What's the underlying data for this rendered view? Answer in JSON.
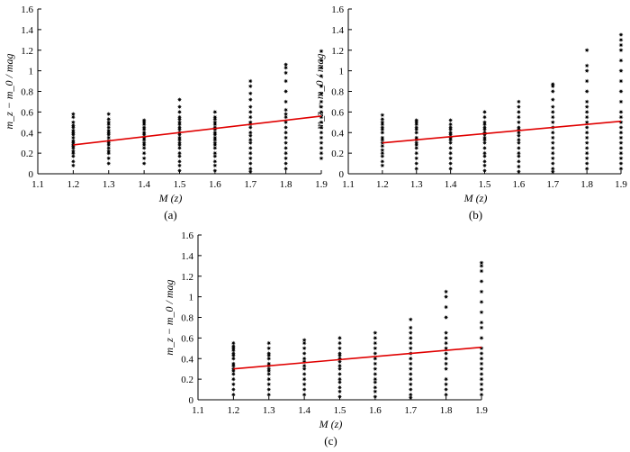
{
  "chart_data": [
    {
      "type": "scatter",
      "label": "(a)",
      "xlabel": "M (z)",
      "ylabel": "m_z − m_0 / mag",
      "xlim": [
        1.1,
        1.9
      ],
      "ylim": [
        0,
        1.6
      ],
      "xticks": [
        "1.1",
        "1.2",
        "1.3",
        "1.4",
        "1.5",
        "1.6",
        "1.7",
        "1.8",
        "1.9"
      ],
      "yticks": [
        "0",
        "0.2",
        "0.4",
        "0.6",
        "0.8",
        "1",
        "1.2",
        "1.4",
        "1.6"
      ],
      "fit_line": {
        "x": [
          1.2,
          1.9
        ],
        "y": [
          0.28,
          0.56
        ]
      },
      "groups": [
        {
          "x": 1.2,
          "y": [
            0.08,
            0.12,
            0.17,
            0.2,
            0.22,
            0.25,
            0.27,
            0.28,
            0.3,
            0.32,
            0.35,
            0.38,
            0.4,
            0.42,
            0.45,
            0.47,
            0.5,
            0.55,
            0.58
          ]
        },
        {
          "x": 1.3,
          "y": [
            0.1,
            0.15,
            0.2,
            0.22,
            0.25,
            0.28,
            0.3,
            0.32,
            0.35,
            0.38,
            0.4,
            0.42,
            0.45,
            0.48,
            0.5,
            0.53,
            0.58
          ]
        },
        {
          "x": 1.4,
          "y": [
            0.1,
            0.15,
            0.2,
            0.25,
            0.28,
            0.3,
            0.33,
            0.35,
            0.38,
            0.4,
            0.43,
            0.45,
            0.48,
            0.5,
            0.52
          ]
        },
        {
          "x": 1.5,
          "y": [
            0.03,
            0.08,
            0.12,
            0.17,
            0.2,
            0.25,
            0.28,
            0.3,
            0.33,
            0.35,
            0.38,
            0.4,
            0.43,
            0.45,
            0.48,
            0.5,
            0.53,
            0.55,
            0.6,
            0.65,
            0.72
          ]
        },
        {
          "x": 1.6,
          "y": [
            0.03,
            0.08,
            0.12,
            0.17,
            0.2,
            0.25,
            0.28,
            0.3,
            0.33,
            0.35,
            0.38,
            0.4,
            0.43,
            0.45,
            0.48,
            0.5,
            0.53,
            0.55,
            0.6
          ]
        },
        {
          "x": 1.7,
          "y": [
            0.02,
            0.05,
            0.1,
            0.15,
            0.2,
            0.25,
            0.3,
            0.33,
            0.37,
            0.4,
            0.45,
            0.48,
            0.5,
            0.55,
            0.6,
            0.65,
            0.72,
            0.78,
            0.85,
            0.9
          ]
        },
        {
          "x": 1.8,
          "y": [
            0.05,
            0.1,
            0.15,
            0.2,
            0.25,
            0.3,
            0.35,
            0.4,
            0.45,
            0.5,
            0.55,
            0.58,
            0.62,
            0.7,
            0.8,
            0.9,
            0.98,
            1.03,
            1.06
          ]
        },
        {
          "x": 1.9,
          "y": [
            0.15,
            0.2,
            0.25,
            0.3,
            0.35,
            0.4,
            0.45,
            0.5,
            0.55,
            0.6,
            0.65,
            0.7,
            0.78,
            0.85,
            0.95,
            1.03,
            1.1,
            1.19
          ]
        }
      ]
    },
    {
      "type": "scatter",
      "label": "(b)",
      "xlabel": "M (z)",
      "ylabel": "m_z − m_0 / mag",
      "xlim": [
        1.1,
        1.9
      ],
      "ylim": [
        0,
        1.6
      ],
      "xticks": [
        "1.1",
        "1.2",
        "1.3",
        "1.4",
        "1.5",
        "1.6",
        "1.7",
        "1.8",
        "1.9"
      ],
      "yticks": [
        "0",
        "0.2",
        "0.4",
        "0.6",
        "0.8",
        "1",
        "1.2",
        "1.4",
        "1.6"
      ],
      "fit_line": {
        "x": [
          1.2,
          1.9
        ],
        "y": [
          0.3,
          0.51
        ]
      },
      "groups": [
        {
          "x": 1.2,
          "y": [
            0.08,
            0.12,
            0.17,
            0.2,
            0.23,
            0.27,
            0.3,
            0.33,
            0.35,
            0.4,
            0.43,
            0.45,
            0.48,
            0.5,
            0.53,
            0.57
          ]
        },
        {
          "x": 1.3,
          "y": [
            0.05,
            0.1,
            0.15,
            0.2,
            0.25,
            0.28,
            0.3,
            0.33,
            0.35,
            0.4,
            0.43,
            0.45,
            0.48,
            0.5,
            0.52
          ]
        },
        {
          "x": 1.4,
          "y": [
            0.05,
            0.1,
            0.15,
            0.2,
            0.25,
            0.3,
            0.33,
            0.35,
            0.38,
            0.4,
            0.43,
            0.45,
            0.48,
            0.52
          ]
        },
        {
          "x": 1.5,
          "y": [
            0.03,
            0.08,
            0.12,
            0.17,
            0.2,
            0.25,
            0.3,
            0.33,
            0.35,
            0.38,
            0.4,
            0.43,
            0.45,
            0.48,
            0.5,
            0.55,
            0.6
          ]
        },
        {
          "x": 1.6,
          "y": [
            0.02,
            0.07,
            0.12,
            0.17,
            0.2,
            0.25,
            0.3,
            0.33,
            0.37,
            0.4,
            0.43,
            0.45,
            0.5,
            0.55,
            0.6,
            0.65,
            0.7
          ]
        },
        {
          "x": 1.7,
          "y": [
            0.02,
            0.05,
            0.1,
            0.15,
            0.2,
            0.25,
            0.3,
            0.35,
            0.4,
            0.45,
            0.5,
            0.55,
            0.6,
            0.65,
            0.72,
            0.8,
            0.85,
            0.87
          ]
        },
        {
          "x": 1.8,
          "y": [
            0.05,
            0.1,
            0.15,
            0.2,
            0.25,
            0.3,
            0.35,
            0.4,
            0.45,
            0.5,
            0.55,
            0.6,
            0.65,
            0.7,
            0.8,
            0.9,
            1.0,
            1.05,
            1.2
          ]
        },
        {
          "x": 1.9,
          "y": [
            0.05,
            0.1,
            0.15,
            0.2,
            0.25,
            0.3,
            0.35,
            0.4,
            0.45,
            0.5,
            0.55,
            0.6,
            0.7,
            0.8,
            0.9,
            1.0,
            1.1,
            1.2,
            1.25,
            1.3,
            1.35
          ]
        }
      ]
    },
    {
      "type": "scatter",
      "label": "(c)",
      "xlabel": "M (z)",
      "ylabel": "m_z − m_0 / mag",
      "xlim": [
        1.1,
        1.9
      ],
      "ylim": [
        0,
        1.6
      ],
      "xticks": [
        "1.1",
        "1.2",
        "1.3",
        "1.4",
        "1.5",
        "1.6",
        "1.7",
        "1.8",
        "1.9"
      ],
      "yticks": [
        "0",
        "0.2",
        "0.4",
        "0.6",
        "0.8",
        "1",
        "1.2",
        "1.4",
        "1.6"
      ],
      "fit_line": {
        "x": [
          1.2,
          1.9
        ],
        "y": [
          0.3,
          0.51
        ]
      },
      "groups": [
        {
          "x": 1.2,
          "y": [
            0.05,
            0.1,
            0.15,
            0.2,
            0.25,
            0.28,
            0.3,
            0.33,
            0.35,
            0.4,
            0.43,
            0.45,
            0.48,
            0.5,
            0.52,
            0.55
          ]
        },
        {
          "x": 1.3,
          "y": [
            0.05,
            0.1,
            0.15,
            0.2,
            0.25,
            0.28,
            0.3,
            0.33,
            0.35,
            0.4,
            0.43,
            0.45,
            0.5,
            0.55
          ]
        },
        {
          "x": 1.4,
          "y": [
            0.05,
            0.1,
            0.15,
            0.2,
            0.25,
            0.3,
            0.33,
            0.37,
            0.4,
            0.45,
            0.5,
            0.55,
            0.58
          ]
        },
        {
          "x": 1.5,
          "y": [
            0.03,
            0.08,
            0.12,
            0.17,
            0.2,
            0.25,
            0.3,
            0.33,
            0.37,
            0.4,
            0.43,
            0.45,
            0.5,
            0.55,
            0.6
          ]
        },
        {
          "x": 1.6,
          "y": [
            0.03,
            0.08,
            0.12,
            0.17,
            0.2,
            0.25,
            0.3,
            0.35,
            0.4,
            0.45,
            0.5,
            0.55,
            0.6,
            0.65
          ]
        },
        {
          "x": 1.7,
          "y": [
            0.02,
            0.05,
            0.1,
            0.15,
            0.2,
            0.25,
            0.3,
            0.35,
            0.4,
            0.45,
            0.5,
            0.55,
            0.6,
            0.65,
            0.7,
            0.78
          ]
        },
        {
          "x": 1.8,
          "y": [
            0.05,
            0.1,
            0.15,
            0.2,
            0.3,
            0.35,
            0.4,
            0.45,
            0.5,
            0.55,
            0.6,
            0.65,
            0.8,
            0.9,
            1.0,
            1.05
          ]
        },
        {
          "x": 1.9,
          "y": [
            0.05,
            0.1,
            0.15,
            0.2,
            0.25,
            0.3,
            0.35,
            0.4,
            0.45,
            0.5,
            0.6,
            0.7,
            0.75,
            0.85,
            0.95,
            1.05,
            1.15,
            1.25,
            1.3,
            1.33
          ]
        }
      ]
    }
  ]
}
